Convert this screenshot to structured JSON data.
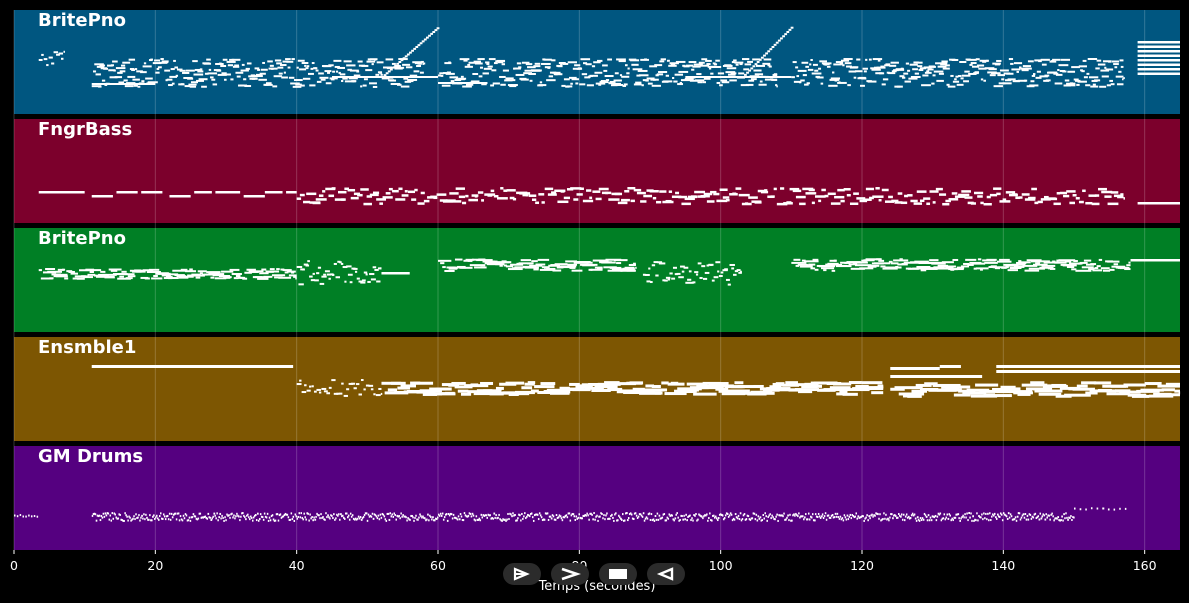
{
  "tracks": [
    {
      "name": "BritePno",
      "color": "#005680"
    },
    {
      "name": "FngrBass",
      "color": "#7c002c"
    },
    {
      "name": "BritePno",
      "color": "#007f25"
    },
    {
      "name": "Ensmble1",
      "color": "#7d5602"
    },
    {
      "name": "GM Drums",
      "color": "#550080"
    }
  ],
  "note_color": "#ffffff",
  "background": "#000000",
  "axis": {
    "label": "Temps (secondes)",
    "min": 0,
    "max": 165,
    "ticks": [
      "0",
      "20",
      "40",
      "60",
      "80",
      "100",
      "120",
      "140",
      "160"
    ],
    "grid": true
  },
  "transport": [
    {
      "name": "step-forward-icon"
    },
    {
      "name": "play-icon"
    },
    {
      "name": "stop-icon"
    },
    {
      "name": "step-back-icon"
    }
  ]
}
